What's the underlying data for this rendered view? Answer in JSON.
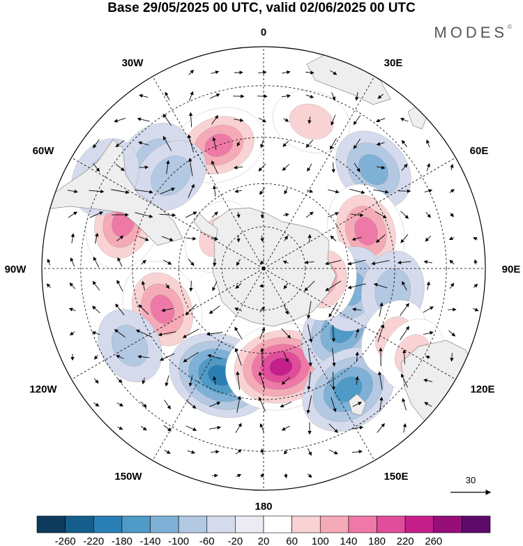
{
  "title": "Base 29/05/2025 00 UTC, valid 02/06/2025 00 UTC",
  "logo": "MODES",
  "logo_mark": "©",
  "longitude_labels": {
    "top": "0",
    "bottom": "180",
    "left": "90W",
    "right": "90E",
    "nw1": "30W",
    "nw2": "60W",
    "ne1": "30E",
    "ne2": "60E",
    "sw1": "120W",
    "sw2": "150W",
    "se1": "120E",
    "se2": "150E"
  },
  "vector_reference": {
    "value": "30"
  },
  "colorbar": {
    "ticks": [
      "-260",
      "-220",
      "-180",
      "-140",
      "-100",
      "-60",
      "-20",
      "20",
      "60",
      "100",
      "140",
      "180",
      "220",
      "260"
    ],
    "colors": [
      "#0d3b5c",
      "#155e8c",
      "#2a7fb5",
      "#4f9ac6",
      "#7fb1d6",
      "#b3c8e2",
      "#d5dbec",
      "#ecebf4",
      "#ffffff",
      "#f9d3d3",
      "#f5aab8",
      "#ee79a6",
      "#e14d9a",
      "#c51f8b",
      "#960e79",
      "#5e0a6b"
    ]
  },
  "anomalies": [
    {
      "lat": -45,
      "lon": -20,
      "value": 150
    },
    {
      "lat": -38,
      "lon": 18,
      "value": 80
    },
    {
      "lat": -40,
      "lon": 48,
      "value": -110
    },
    {
      "lat": -52,
      "lon": 70,
      "value": 160
    },
    {
      "lat": -40,
      "lon": -72,
      "value": 150
    },
    {
      "lat": -52,
      "lon": -112,
      "value": 170
    },
    {
      "lat": -50,
      "lon": -158,
      "value": -200
    },
    {
      "lat": -55,
      "lon": 170,
      "value": 230
    },
    {
      "lat": -55,
      "lon": 128,
      "value": -150
    },
    {
      "lat": -40,
      "lon": 145,
      "value": -170
    },
    {
      "lat": -58,
      "lon": 103,
      "value": -110
    },
    {
      "lat": -68,
      "lon": 100,
      "value": 100
    },
    {
      "lat": -45,
      "lon": 100,
      "value": -90
    },
    {
      "lat": -40,
      "lon": 118,
      "value": 80
    },
    {
      "lat": -38,
      "lon": -45,
      "value": -90
    },
    {
      "lat": -45,
      "lon": -45,
      "value": -80
    },
    {
      "lat": -30,
      "lon": -60,
      "value": -90
    },
    {
      "lat": -70,
      "lon": -55,
      "value": 70
    },
    {
      "lat": -38,
      "lon": -120,
      "value": -70
    },
    {
      "lat": -33,
      "lon": 120,
      "value": 60
    }
  ]
}
